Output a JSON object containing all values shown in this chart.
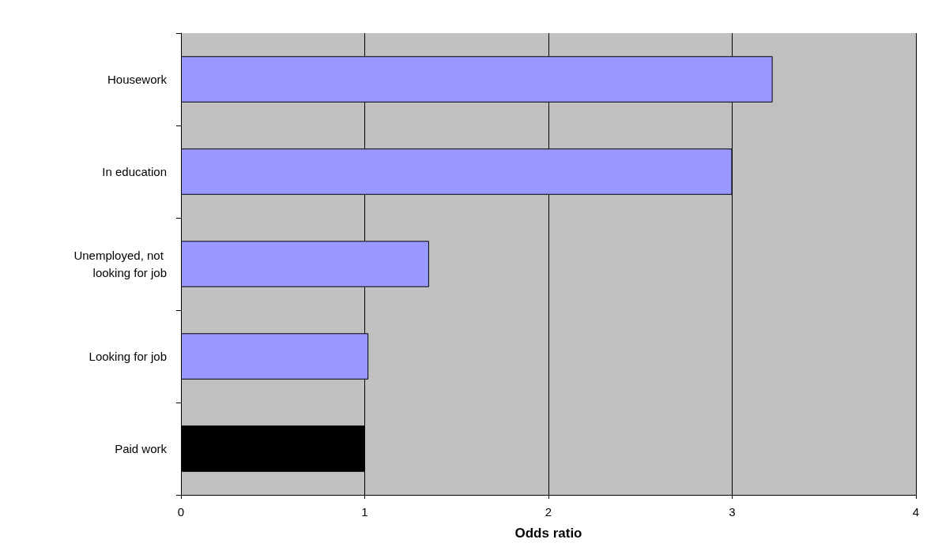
{
  "chart_data": {
    "type": "bar",
    "orientation": "horizontal",
    "xlabel": "Odds ratio",
    "categories": [
      "Housework",
      "In education",
      "Unemployed, not looking for job",
      "Looking for job",
      "Paid work"
    ],
    "values": [
      3.22,
      3.0,
      1.35,
      1.02,
      1.0
    ],
    "colors": [
      "#9999ff",
      "#9999ff",
      "#9999ff",
      "#9999ff",
      "#000000"
    ],
    "xlim": [
      0,
      4
    ],
    "xticks": [
      0,
      1,
      2,
      3,
      4
    ],
    "grid": "x"
  }
}
